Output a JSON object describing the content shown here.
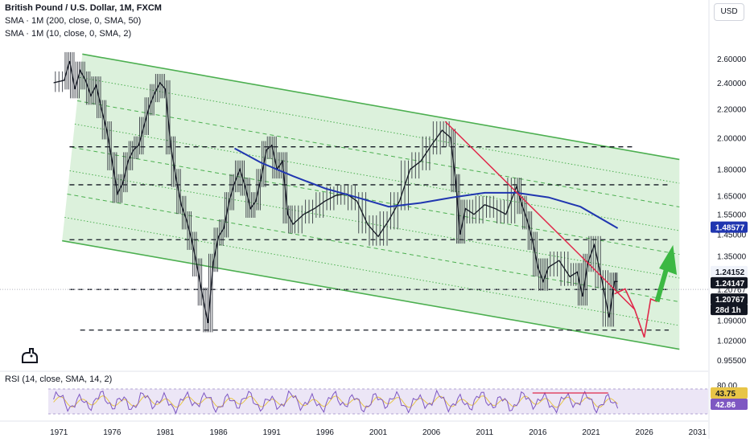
{
  "legend": {
    "title": "British Pound / U.S. Dollar, 1M, FXCM",
    "sma1": "SMA · 1M (200, close, 0, SMA, 50)",
    "sma2": "SMA · 1M (10, close, 0, SMA, 2)",
    "rsi": "RSI (14, close, SMA, 14, 2)"
  },
  "currency_button": "USD",
  "colors": {
    "channel_line": "#4caf50",
    "channel_fill": "#d6efd6",
    "price": "#131722",
    "sma": "#2036b0",
    "trendline": "#e0284a",
    "arrow": "#3cb843",
    "rsi_line": "#7e57c2",
    "rsi_signal": "#e8c547",
    "rsi_band": "#ece6f6"
  },
  "chart_data": {
    "type": "line",
    "xlabel": "",
    "ylabel": "",
    "x_ticks": [
      "1971",
      "1976",
      "1981",
      "1986",
      "1991",
      "1996",
      "2001",
      "2006",
      "2011",
      "2016",
      "2021",
      "2026",
      "2031"
    ],
    "xlim": [
      1970,
      2032
    ],
    "y_scale": "log",
    "ylim": [
      0.93,
      2.78
    ],
    "y_ticks": [
      "2.60000",
      "2.40000",
      "2.20000",
      "2.00000",
      "1.80000",
      "1.65000",
      "1.55000",
      "1.45000",
      "1.35000",
      "1.24152",
      "1.20767",
      "1.09000",
      "1.02000",
      "0.95500"
    ],
    "price_labels": [
      {
        "value": 1.48577,
        "text": "1.48577",
        "color": "#2036b0",
        "text_color": "#ffffff"
      },
      {
        "value": 1.24152,
        "text": "1.24152",
        "color": "#f0f3fa",
        "text_color": "#131722"
      },
      {
        "value": 1.24147,
        "text": "1.24147",
        "color": "#131722",
        "text_color": "#ffffff"
      },
      {
        "value": 1.20767,
        "text": "1.20767",
        "color": "#131722",
        "text_color": "#ffffff"
      },
      {
        "value": 1.20767,
        "text": "28d 1h",
        "color": "#131722",
        "text_color": "#ffffff"
      }
    ],
    "series": [
      {
        "type": "line",
        "x": [
          1970.5,
          1971.5,
          1972.0,
          1972.5,
          1973.0,
          1973.5,
          1974.0,
          1974.5,
          1975.0,
          1975.5,
          1976.0,
          1976.5,
          1977.0,
          1977.5,
          1978.0,
          1978.5,
          1979.0,
          1979.5,
          1980.0,
          1980.5,
          1981.0,
          1981.5,
          1982.0,
          1982.5,
          1983.0,
          1983.5,
          1984.0,
          1984.5,
          1985.0,
          1985.5,
          1986.0,
          1986.5,
          1987.0,
          1987.5,
          1988.0,
          1988.5,
          1989.0,
          1989.5,
          1990.0,
          1990.5,
          1991.0,
          1991.5,
          1992.0,
          1992.5,
          1993.0,
          1994.0,
          1995.0,
          1996.0,
          1997.0,
          1998.0,
          1999.0,
          2000.0,
          2001.0,
          2002.0,
          2003.0,
          2004.0,
          2005.0,
          2006.0,
          2007.0,
          2007.8,
          2008.3,
          2008.7,
          2009.2,
          2010.0,
          2011.0,
          2012.0,
          2013.0,
          2014.0,
          2014.5,
          2015.0,
          2015.5,
          2016.0,
          2016.5,
          2017.0,
          2018.0,
          2019.0,
          2019.7,
          2020.2,
          2020.7,
          2021.3,
          2022.0,
          2022.7,
          2023.2,
          2023.5
        ],
        "values": [
          2.4,
          2.42,
          2.58,
          2.35,
          2.5,
          2.42,
          2.3,
          2.38,
          2.2,
          2.05,
          1.85,
          1.66,
          1.72,
          1.85,
          1.92,
          1.95,
          2.08,
          2.22,
          2.32,
          2.4,
          2.35,
          1.95,
          1.75,
          1.6,
          1.52,
          1.42,
          1.3,
          1.18,
          1.08,
          1.32,
          1.44,
          1.48,
          1.62,
          1.72,
          1.8,
          1.7,
          1.58,
          1.62,
          1.75,
          1.92,
          1.95,
          1.8,
          1.85,
          1.55,
          1.5,
          1.55,
          1.58,
          1.62,
          1.65,
          1.66,
          1.62,
          1.5,
          1.44,
          1.52,
          1.62,
          1.8,
          1.85,
          1.95,
          2.05,
          2.0,
          1.72,
          1.45,
          1.58,
          1.55,
          1.6,
          1.58,
          1.55,
          1.7,
          1.6,
          1.52,
          1.42,
          1.3,
          1.24,
          1.3,
          1.33,
          1.26,
          1.28,
          1.18,
          1.32,
          1.4,
          1.25,
          1.1,
          1.24,
          1.24
        ]
      },
      {
        "name": "SMA · 1M (200, close, 0, SMA, 50)",
        "type": "line",
        "x": [
          1987.5,
          1990.0,
          1993.0,
          1996.0,
          1999.0,
          2002.0,
          2005.0,
          2008.0,
          2011.0,
          2014.0,
          2017.0,
          2020.0,
          2023.5
        ],
        "values": [
          1.93,
          1.84,
          1.76,
          1.69,
          1.64,
          1.59,
          1.61,
          1.64,
          1.665,
          1.665,
          1.64,
          1.59,
          1.48
        ]
      }
    ]
  }
}
